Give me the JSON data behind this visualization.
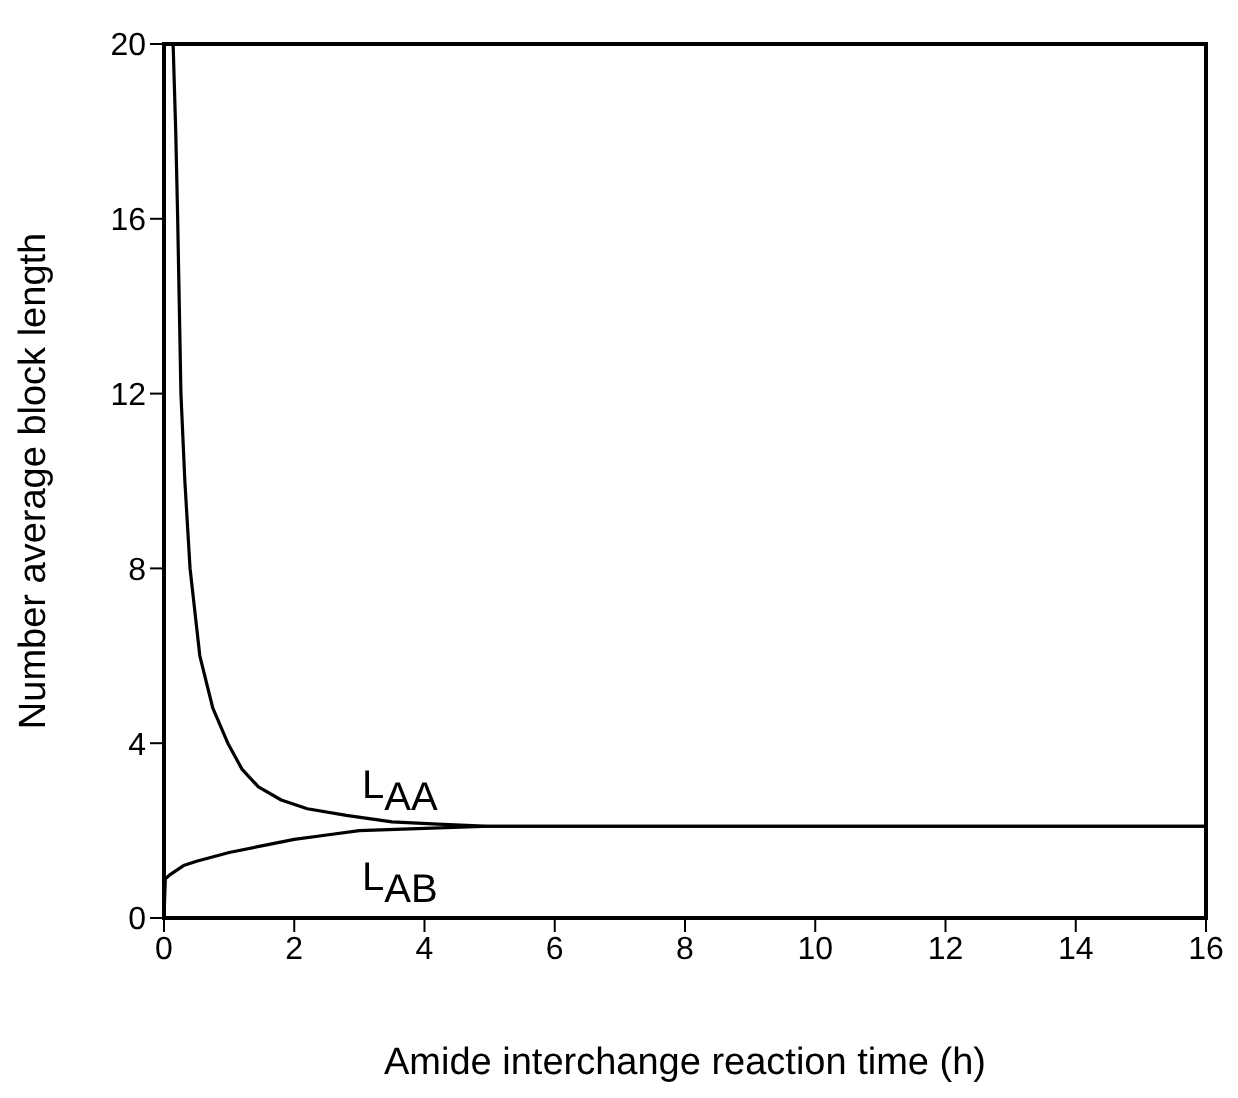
{
  "chart_data": {
    "type": "line",
    "xlabel": "Amide interchange reaction time (h)",
    "ylabel": "Number average block length",
    "xlim": [
      0,
      16
    ],
    "ylim": [
      0,
      20
    ],
    "xticks": [
      0,
      2,
      4,
      6,
      8,
      10,
      12,
      14,
      16
    ],
    "yticks": [
      0,
      4,
      8,
      12,
      16,
      20
    ],
    "grid": false,
    "legend": false,
    "marker": "none",
    "line_style": "solid",
    "series": [
      {
        "name": "L$_{AA}$",
        "color": "#000000",
        "x": [
          0.14,
          0.18,
          0.21,
          0.26,
          0.32,
          0.4,
          0.55,
          0.75,
          0.98,
          1.2,
          1.45,
          1.8,
          2.2,
          2.8,
          3.5,
          4.2,
          5,
          8,
          12,
          16
        ],
        "values": [
          20,
          18,
          16,
          12,
          10,
          8,
          6,
          4.8,
          4,
          3.4,
          3,
          2.7,
          2.5,
          2.35,
          2.2,
          2.15,
          2.1,
          2.1,
          2.1,
          2.1
        ]
      },
      {
        "name": "L$_{AB}$",
        "color": "#000000",
        "x": [
          0,
          0.02,
          0.1,
          0.3,
          0.5,
          1,
          1.5,
          2,
          2.5,
          3,
          4,
          5,
          8,
          12,
          16
        ],
        "values": [
          0,
          0.9,
          1.0,
          1.2,
          1.3,
          1.5,
          1.65,
          1.8,
          1.9,
          2.0,
          2.05,
          2.1,
          2.1,
          2.1,
          2.1
        ]
      }
    ]
  }
}
